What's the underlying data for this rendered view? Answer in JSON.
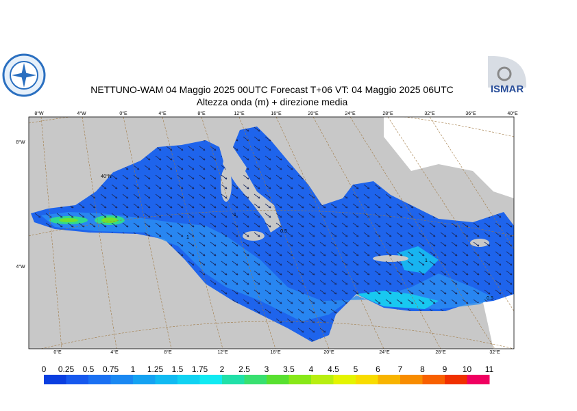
{
  "header": {
    "title": "NETTUNO-WAM  04   Maggio  2025 00UTC Forecast T+06 VT: 04   Maggio  2025 06UTC",
    "subtitle": "Altezza onda (m) + direzione media"
  },
  "logos": {
    "right_text": "ISMAR"
  },
  "map": {
    "top_lon_labels": [
      "8°W",
      "4°W",
      "0°E",
      "4°E",
      "8°E",
      "12°E",
      "16°E",
      "20°E",
      "24°E",
      "28°E",
      "32°E",
      "36°E",
      "40°E"
    ],
    "bottom_lon_labels": [
      "0°E",
      "4°E",
      "8°E",
      "12°E",
      "16°E",
      "20°E",
      "24°E",
      "28°E",
      "32°E"
    ],
    "lat_labels": [
      "8°W",
      "4°W",
      "40°N"
    ],
    "contour_labels": [
      "1",
      "1",
      "0.5",
      "1",
      "0.5"
    ]
  },
  "colorbar": {
    "ticks": [
      0,
      0.25,
      0.5,
      0.75,
      1,
      1.25,
      1.5,
      1.75,
      2,
      2.5,
      3,
      3.5,
      4,
      4.5,
      5,
      6,
      7,
      8,
      9,
      10,
      11
    ],
    "colors": [
      "#0a3ee0",
      "#1658ee",
      "#1a70f2",
      "#1a88f2",
      "#14a2f2",
      "#10baf2",
      "#10d2f2",
      "#10eaf2",
      "#20e0a8",
      "#38e070",
      "#58e030",
      "#88e818",
      "#b8ee10",
      "#e4f400",
      "#f8dc00",
      "#f8b400",
      "#f88c00",
      "#f86000",
      "#f03000",
      "#f00060"
    ]
  }
}
